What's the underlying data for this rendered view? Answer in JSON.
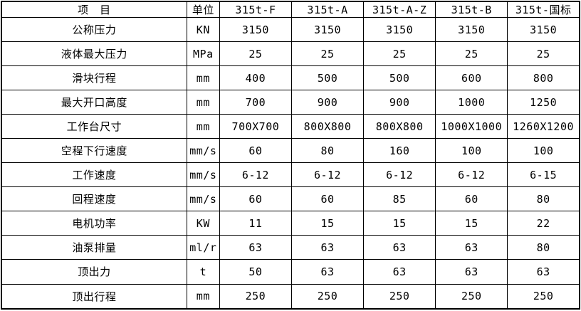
{
  "colors": {
    "border": "#000000",
    "text": "#000000",
    "background": "#ffffff"
  },
  "chart_data": {
    "type": "table",
    "title": "",
    "columns": [
      "项　目",
      "单位",
      "315t-F",
      "315t-A",
      "315t-A-Z",
      "315t-B",
      "315t-国标"
    ],
    "rows": [
      {
        "item": "公称压力",
        "unit": "KN",
        "values": [
          "3150",
          "3150",
          "3150",
          "3150",
          "3150"
        ]
      },
      {
        "item": "液体最大压力",
        "unit": "MPa",
        "values": [
          "25",
          "25",
          "25",
          "25",
          "25"
        ]
      },
      {
        "item": "滑块行程",
        "unit": "mm",
        "values": [
          "400",
          "500",
          "500",
          "600",
          "800"
        ]
      },
      {
        "item": "最大开口高度",
        "unit": "mm",
        "values": [
          "700",
          "900",
          "900",
          "1000",
          "1250"
        ]
      },
      {
        "item": "工作台尺寸",
        "unit": "mm",
        "values": [
          "700X700",
          "800X800",
          "800X800",
          "1000X1000",
          "1260X1200"
        ]
      },
      {
        "item": "空程下行速度",
        "unit": "mm/s",
        "values": [
          "60",
          "80",
          "160",
          "100",
          "100"
        ]
      },
      {
        "item": "工作速度",
        "unit": "mm/s",
        "values": [
          "6-12",
          "6-12",
          "6-12",
          "6-12",
          "6-15"
        ]
      },
      {
        "item": "回程速度",
        "unit": "mm/s",
        "values": [
          "60",
          "60",
          "85",
          "60",
          "80"
        ]
      },
      {
        "item": "电机功率",
        "unit": "KW",
        "values": [
          "11",
          "15",
          "15",
          "15",
          "22"
        ]
      },
      {
        "item": "油泵排量",
        "unit": "ml/r",
        "values": [
          "63",
          "63",
          "63",
          "63",
          "80"
        ]
      },
      {
        "item": "顶出力",
        "unit": "t",
        "values": [
          "50",
          "63",
          "63",
          "63",
          "63"
        ]
      },
      {
        "item": "顶出行程",
        "unit": "mm",
        "values": [
          "250",
          "250",
          "250",
          "250",
          "250"
        ]
      }
    ]
  }
}
